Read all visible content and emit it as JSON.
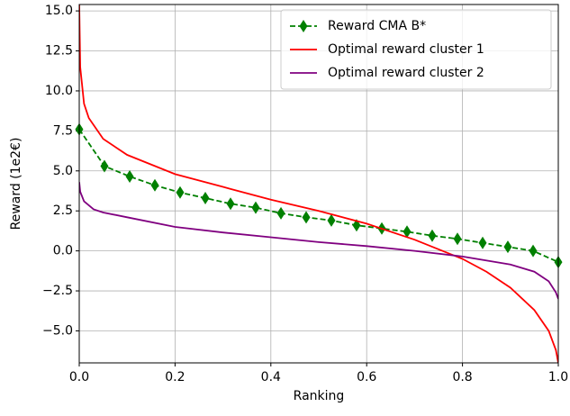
{
  "chart_data": {
    "type": "line",
    "xlabel": "Ranking",
    "ylabel": "Reward (1e2€)",
    "xlim": [
      0,
      1
    ],
    "ylim": [
      -7.0,
      15.4
    ],
    "xticks": [
      {
        "value": 0,
        "label": "0.0"
      },
      {
        "value": 0.2,
        "label": "0.2"
      },
      {
        "value": 0.4,
        "label": "0.4"
      },
      {
        "value": 0.6,
        "label": "0.6"
      },
      {
        "value": 0.8,
        "label": "0.8"
      },
      {
        "value": 1,
        "label": "1.0"
      }
    ],
    "yticks": [
      {
        "value": -5,
        "label": "−5.0"
      },
      {
        "value": -2.5,
        "label": "−2.5"
      },
      {
        "value": 0,
        "label": "0.0"
      },
      {
        "value": 2.5,
        "label": "2.5"
      },
      {
        "value": 5,
        "label": "5.0"
      },
      {
        "value": 7.5,
        "label": "7.5"
      },
      {
        "value": 10,
        "label": "10.0"
      },
      {
        "value": 12.5,
        "label": "12.5"
      },
      {
        "value": 15,
        "label": "15.0"
      }
    ],
    "grid": true,
    "legend": "upper right",
    "series": [
      {
        "name": "Reward CMA B*",
        "color": "#008000",
        "dashed": true,
        "marker": "diamond",
        "x": [
          0,
          0.0526,
          0.1053,
          0.1579,
          0.2105,
          0.2632,
          0.3158,
          0.3684,
          0.4211,
          0.4737,
          0.5263,
          0.5789,
          0.6316,
          0.6842,
          0.7368,
          0.7895,
          0.8421,
          0.8947,
          0.9474,
          1.0
        ],
        "values": [
          7.6,
          5.3,
          4.65,
          4.1,
          3.65,
          3.3,
          2.95,
          2.7,
          2.35,
          2.1,
          1.9,
          1.6,
          1.4,
          1.2,
          0.95,
          0.75,
          0.5,
          0.25,
          0.0,
          -0.7
        ]
      },
      {
        "name": "Optimal reward cluster 1",
        "color": "#ff0000",
        "x": [
          0,
          0.002,
          0.01,
          0.02,
          0.05,
          0.1,
          0.2,
          0.3,
          0.4,
          0.5,
          0.6,
          0.7,
          0.8,
          0.85,
          0.9,
          0.95,
          0.98,
          0.995,
          1.0
        ],
        "values": [
          15.4,
          11.5,
          9.2,
          8.3,
          7.0,
          6.0,
          4.8,
          4.0,
          3.2,
          2.5,
          1.7,
          0.7,
          -0.5,
          -1.3,
          -2.3,
          -3.7,
          -5.0,
          -6.2,
          -7.0
        ]
      },
      {
        "name": "Optimal reward cluster 2",
        "color": "#800080",
        "x": [
          0,
          0.002,
          0.01,
          0.03,
          0.05,
          0.1,
          0.2,
          0.3,
          0.4,
          0.5,
          0.6,
          0.7,
          0.8,
          0.9,
          0.95,
          0.98,
          0.995,
          1.0
        ],
        "values": [
          4.3,
          3.7,
          3.1,
          2.6,
          2.4,
          2.1,
          1.5,
          1.15,
          0.85,
          0.55,
          0.3,
          0.0,
          -0.35,
          -0.85,
          -1.3,
          -1.9,
          -2.6,
          -3.0
        ]
      }
    ]
  }
}
